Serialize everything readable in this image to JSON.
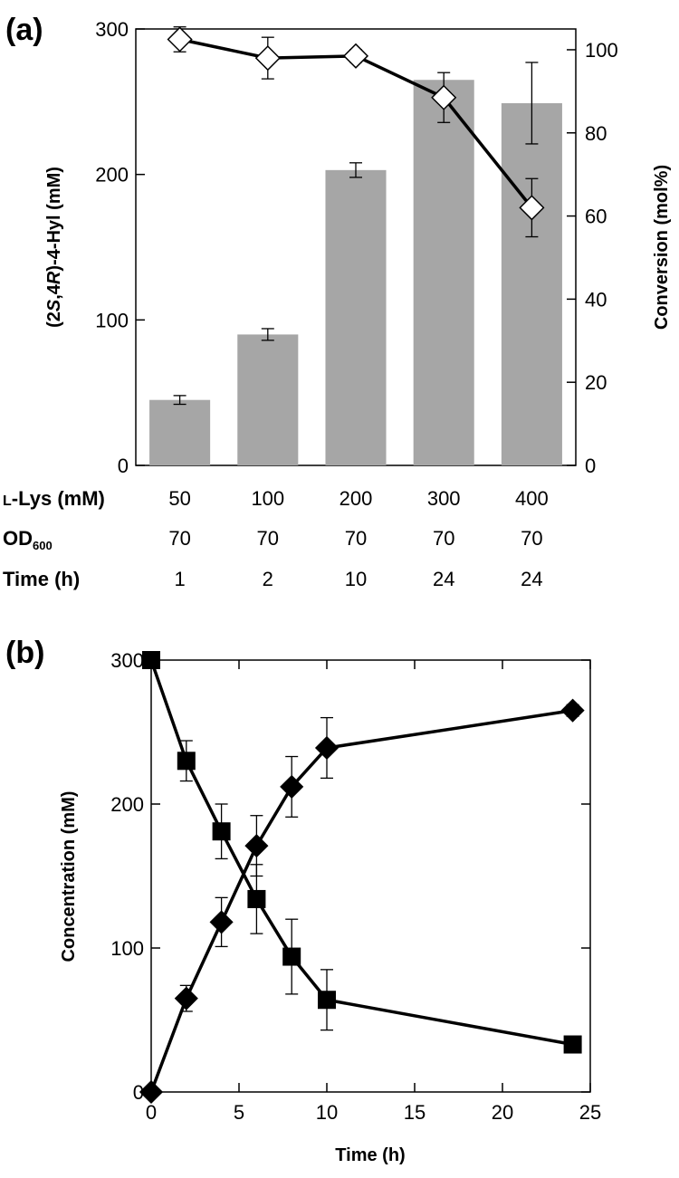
{
  "chart_data": [
    {
      "panel": "(a)",
      "type": "bar",
      "categories": [
        "50",
        "100",
        "200",
        "300",
        "400"
      ],
      "bar_series": {
        "name": "(2S,4R)-4-Hyl (mM)",
        "color": "#a6a6a6",
        "values": [
          45,
          90,
          203,
          265,
          249
        ],
        "errors": [
          3,
          4,
          5,
          0,
          28
        ]
      },
      "line_series": {
        "name": "Conversion (mol%)",
        "marker": "open-diamond",
        "values": [
          102.5,
          98,
          98.5,
          88.5,
          62
        ],
        "errors": [
          3,
          5,
          1.5,
          6,
          7
        ]
      },
      "y_left": {
        "ylim": [
          0,
          300
        ],
        "ticks": [
          0,
          100,
          200,
          300
        ],
        "tick_labels": [
          "0",
          "100",
          "200",
          "300"
        ],
        "label_parts": [
          {
            "text": "(2",
            "italic": false
          },
          {
            "text": "S",
            "italic": true
          },
          {
            "text": ",4",
            "italic": false
          },
          {
            "text": "R",
            "italic": true
          },
          {
            "text": ")-4-Hyl (mM)",
            "italic": false
          }
        ]
      },
      "y_right": {
        "ylim": [
          0,
          105
        ],
        "ticks": [
          0,
          20,
          40,
          60,
          80,
          100
        ],
        "tick_labels": [
          "0",
          "20",
          "40",
          "60",
          "80",
          "100"
        ],
        "label": "Conversion (mol%)"
      },
      "conditions": [
        {
          "label": "L-Lys (mM)",
          "label_main": "-Lys (mM)",
          "label_prefix": "L",
          "values": [
            "50",
            "100",
            "200",
            "300",
            "400"
          ]
        },
        {
          "label": "OD600",
          "label_main": "OD",
          "label_sub": "600",
          "values": [
            "70",
            "70",
            "70",
            "70",
            "70"
          ]
        },
        {
          "label": "Time (h)",
          "label_main": "Time (h)",
          "values": [
            "1",
            "2",
            "10",
            "24",
            "24"
          ]
        }
      ]
    },
    {
      "panel": "(b)",
      "type": "line",
      "xlabel": "Time (h)",
      "ylabel": "Concentration (mM)",
      "xlim": [
        0,
        25
      ],
      "ylim": [
        0,
        300
      ],
      "x_ticks": [
        0,
        5,
        10,
        15,
        20,
        25
      ],
      "x_tick_labels": [
        "0",
        "5",
        "10",
        "15",
        "20",
        "25"
      ],
      "y_ticks": [
        0,
        100,
        200,
        300
      ],
      "y_tick_labels": [
        "0",
        "100",
        "200",
        "300"
      ],
      "series": [
        {
          "name": "L-Lys",
          "marker": "filled-square",
          "x": [
            0,
            2,
            4,
            6,
            8,
            10,
            24
          ],
          "values": [
            300,
            230,
            181,
            134,
            94,
            64,
            33
          ],
          "errors": [
            0,
            14,
            19,
            24,
            26,
            21,
            5
          ]
        },
        {
          "name": "(2S,4R)-4-Hyl",
          "marker": "filled-diamond",
          "x": [
            0,
            2,
            4,
            6,
            8,
            10,
            24
          ],
          "values": [
            0,
            65,
            118,
            171,
            212,
            239,
            265
          ],
          "errors": [
            0,
            9,
            17,
            21,
            21,
            21,
            4
          ]
        }
      ]
    }
  ]
}
